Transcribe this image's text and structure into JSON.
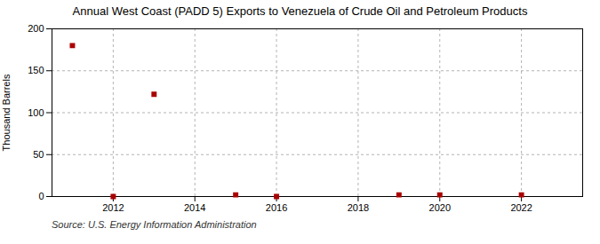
{
  "chart_data": {
    "type": "scatter",
    "title": "Annual West Coast (PADD 5) Exports to Venezuela of Crude Oil and Petroleum Products",
    "ylabel": "Thousand Barrels",
    "annotation": "Source: U.S. Energy Information Administration",
    "x": [
      2011,
      2012,
      2013,
      2015,
      2016,
      2019,
      2020,
      2022
    ],
    "values": [
      180,
      0,
      122,
      2,
      0,
      2,
      2,
      2
    ],
    "color": "#aa0000",
    "marker": "square",
    "xlim": [
      2010.5,
      2023.5
    ],
    "xticks": [
      2012,
      2014,
      2016,
      2018,
      2020,
      2022
    ],
    "ylim": [
      0,
      200
    ],
    "yticks": [
      0,
      50,
      100,
      150,
      200
    ],
    "grid": true
  }
}
